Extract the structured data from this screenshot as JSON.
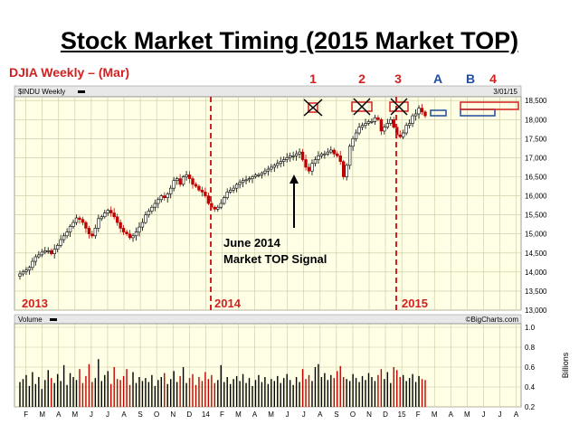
{
  "slide": {
    "title": "Stock Market Timing (2015 Market TOP)",
    "subtitle": "DJIA Weekly – (Mar)"
  },
  "chart_data": {
    "type": "candlestick",
    "symbol_label": "$INDU Weekly",
    "date_label": "3/01/15",
    "watermark": "©BigCharts.com",
    "price_axis": {
      "ticks": [
        13000,
        13500,
        14000,
        14500,
        15000,
        15500,
        16000,
        16500,
        17000,
        17500,
        18000,
        18500
      ],
      "tick_labels": [
        "13,000",
        "13,500",
        "14,000",
        "14,500",
        "15,000",
        "15,500",
        "16,000",
        "16,500",
        "17,000",
        "17,500",
        "18,000",
        "18,500"
      ],
      "range": [
        13000,
        18600
      ]
    },
    "volume_axis": {
      "title": "Volume",
      "unit_label": "Billions",
      "ticks": [
        0.2,
        0.4,
        0.6,
        0.8,
        1.0
      ],
      "tick_labels": [
        "0.2",
        "0.4",
        "0.6",
        "0.8",
        "1.0"
      ],
      "range": [
        0.2,
        1.0
      ]
    },
    "month_labels": [
      "F",
      "M",
      "A",
      "M",
      "J",
      "J",
      "A",
      "S",
      "O",
      "N",
      "D",
      "14",
      "F",
      "M",
      "A",
      "M",
      "J",
      "J",
      "A",
      "S",
      "O",
      "N",
      "D",
      "15",
      "F",
      "M",
      "A",
      "M",
      "J",
      "J",
      "A"
    ],
    "year_labels": [
      "2013",
      "2014",
      "2015"
    ],
    "signal_labels": [
      "1",
      "2",
      "3",
      "A",
      "B",
      "4"
    ],
    "annotation": [
      "June 2014",
      "Market TOP Signal"
    ],
    "close_series": [
      13950,
      14010,
      14050,
      14120,
      14280,
      14400,
      14450,
      14520,
      14560,
      14560,
      14480,
      14600,
      14700,
      14850,
      14950,
      15050,
      15200,
      15300,
      15420,
      15380,
      15300,
      15150,
      15000,
      14950,
      15150,
      15400,
      15450,
      15550,
      15620,
      15550,
      15450,
      15300,
      15150,
      15050,
      15000,
      14900,
      14950,
      15050,
      15180,
      15300,
      15500,
      15600,
      15700,
      15800,
      15900,
      16000,
      15950,
      16050,
      16200,
      16400,
      16450,
      16300,
      16500,
      16550,
      16450,
      16300,
      16250,
      16150,
      16100,
      16000,
      15800,
      15700,
      15650,
      15700,
      15800,
      15950,
      16100,
      16150,
      16200,
      16300,
      16350,
      16400,
      16420,
      16450,
      16500,
      16550,
      16550,
      16600,
      16650,
      16700,
      16750,
      16800,
      16850,
      16900,
      16950,
      17000,
      17050,
      17050,
      17100,
      17150,
      16950,
      16750,
      16650,
      16850,
      16950,
      17050,
      17100,
      17100,
      17150,
      17200,
      17100,
      17050,
      16900,
      16500,
      16800,
      17300,
      17500,
      17650,
      17800,
      17850,
      17900,
      17950,
      17950,
      18050,
      18000,
      17700,
      17800,
      17900,
      18000,
      17800,
      17600,
      17550,
      17650,
      17850,
      17900,
      18100,
      18150,
      18300,
      18200,
      18100
    ],
    "volume_series": [
      0.45,
      0.48,
      0.52,
      0.41,
      0.55,
      0.43,
      0.5,
      0.38,
      0.47,
      0.57,
      0.49,
      0.44,
      0.53,
      0.46,
      0.62,
      0.42,
      0.54,
      0.5,
      0.47,
      0.58,
      0.44,
      0.51,
      0.63,
      0.45,
      0.49,
      0.68,
      0.46,
      0.52,
      0.56,
      0.43,
      0.6,
      0.48,
      0.47,
      0.51,
      0.58,
      0.42,
      0.55,
      0.44,
      0.5,
      0.46,
      0.49,
      0.45,
      0.52,
      0.41,
      0.47,
      0.5,
      0.54,
      0.43,
      0.48,
      0.56,
      0.45,
      0.51,
      0.6,
      0.44,
      0.49,
      0.53,
      0.42,
      0.5,
      0.46,
      0.55,
      0.48,
      0.52,
      0.44,
      0.47,
      0.62,
      0.45,
      0.5,
      0.43,
      0.48,
      0.51,
      0.46,
      0.53,
      0.44,
      0.49,
      0.41,
      0.47,
      0.52,
      0.45,
      0.5,
      0.43,
      0.48,
      0.46,
      0.51,
      0.44,
      0.49,
      0.53,
      0.47,
      0.42,
      0.5,
      0.45,
      0.58,
      0.48,
      0.52,
      0.46,
      0.6,
      0.63,
      0.5,
      0.54,
      0.47,
      0.52,
      0.49,
      0.56,
      0.61,
      0.5,
      0.48,
      0.46,
      0.53,
      0.49,
      0.45,
      0.51,
      0.47,
      0.54,
      0.5,
      0.46,
      0.52,
      0.58,
      0.48,
      0.55,
      0.44,
      0.6,
      0.57,
      0.5,
      0.52,
      0.46,
      0.49,
      0.53,
      0.45,
      0.51,
      0.48,
      0.47
    ],
    "projected_boxes": [
      {
        "label": "A",
        "low": 18180,
        "high": 18320,
        "color": "#1f4e9c"
      },
      {
        "label": "B",
        "low": 18180,
        "high": 18320,
        "color": "#1f4e9c"
      },
      {
        "label": "4",
        "low": 18430,
        "high": 18580,
        "color": "#d32020"
      }
    ],
    "colors": {
      "background": "#ffffe6",
      "up": "#000000",
      "down": "#c00000",
      "grid": "#c8c8a0",
      "signal": "#d32020",
      "projection": "#1f4e9c"
    }
  }
}
